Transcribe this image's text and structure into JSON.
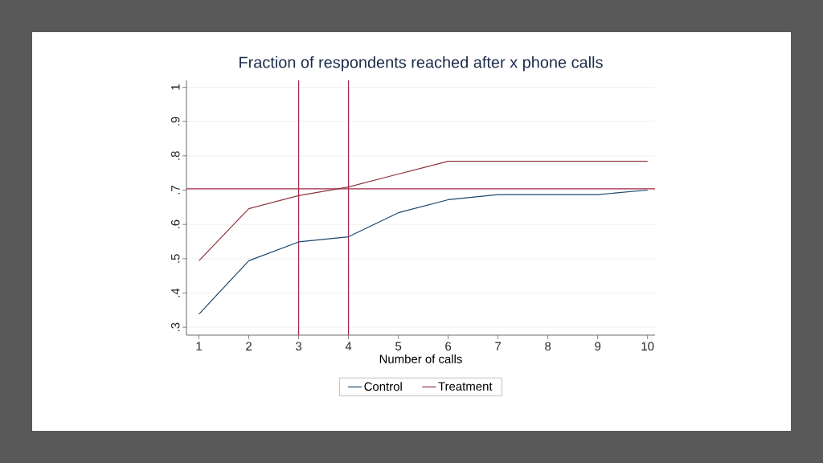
{
  "chart_data": {
    "type": "line",
    "title": "Fraction of respondents reached after x phone calls",
    "xlabel": "Number of calls",
    "x": [
      1,
      2,
      3,
      4,
      5,
      6,
      7,
      8,
      9,
      10
    ],
    "series": [
      {
        "name": "Control",
        "color": "#1a476f",
        "values": [
          0.338,
          0.494,
          0.549,
          0.564,
          0.634,
          0.672,
          0.687,
          0.687,
          0.687,
          0.7
        ]
      },
      {
        "name": "Treatment",
        "color": "#90353b",
        "values": [
          0.494,
          0.646,
          0.684,
          0.709,
          0.747,
          0.784,
          0.784,
          0.784,
          0.784,
          0.784
        ]
      }
    ],
    "xlim": [
      0.75,
      10.15
    ],
    "ylim": [
      0.277,
      1.02
    ],
    "xticks": [
      1,
      2,
      3,
      4,
      5,
      6,
      7,
      8,
      9,
      10
    ],
    "yticks": [
      {
        "value": 0.3,
        "label": ".3"
      },
      {
        "value": 0.4,
        "label": ".4"
      },
      {
        "value": 0.5,
        "label": ".5"
      },
      {
        "value": 0.6,
        "label": ".6"
      },
      {
        "value": 0.7,
        "label": ".7"
      },
      {
        "value": 0.8,
        "label": ".8"
      },
      {
        "value": 0.9,
        "label": ".9"
      },
      {
        "value": 1,
        "label": "1"
      }
    ],
    "ref_lines": [
      {
        "axis": "y",
        "value": 0.704,
        "color": "#a3284a"
      },
      {
        "axis": "x",
        "value": 3,
        "color": "#a3284a"
      },
      {
        "axis": "x",
        "value": 4,
        "color": "#a3284a"
      }
    ],
    "grid": "y",
    "legend": "bottom",
    "marker": "none",
    "line_style": "solid"
  }
}
